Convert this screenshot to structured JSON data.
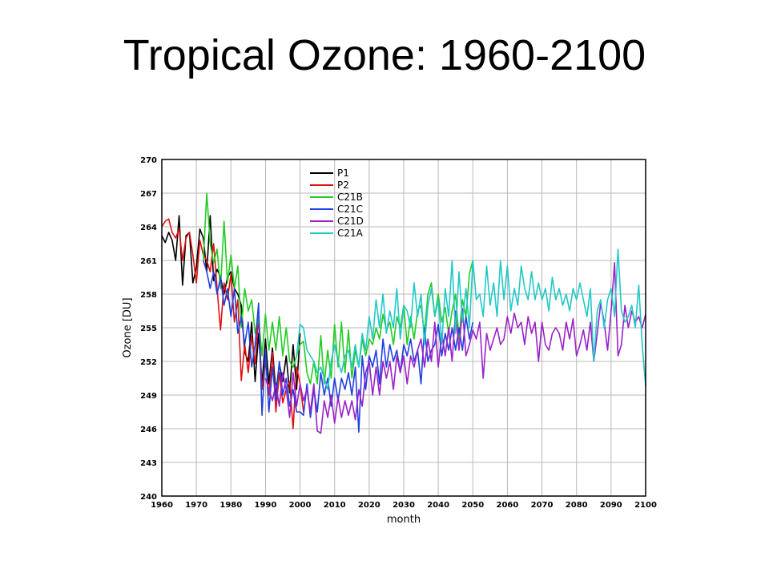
{
  "slide": {
    "title": "Tropical Ozone: 1960-2100"
  },
  "chart_data": {
    "type": "line",
    "title": "Tropical Ozone: 1960-2100",
    "xlabel": "month",
    "ylabel": "Ozone [DU]",
    "xlim": [
      1960,
      2100
    ],
    "ylim": [
      240,
      270
    ],
    "xticks": [
      1960,
      1970,
      1980,
      1990,
      2000,
      2010,
      2020,
      2030,
      2040,
      2050,
      2060,
      2070,
      2080,
      2090,
      2100
    ],
    "xtick_labels": [
      "1960",
      "1970",
      "1980",
      "1990",
      "2000",
      "2010",
      "2020",
      "2030",
      "2040",
      "2050",
      "2060",
      "2070",
      "2080",
      "2090",
      "2100"
    ],
    "yticks": [
      240,
      243,
      246,
      249,
      252,
      255,
      258,
      261,
      264,
      267,
      270
    ],
    "ytick_labels": [
      "240",
      "243",
      "246",
      "249",
      "252",
      "255",
      "258",
      "261",
      "264",
      "267",
      "270"
    ],
    "grid": true,
    "legend_position": "top-left",
    "series": [
      {
        "name": "P1",
        "color": "#000000",
        "x": [
          1960,
          1961,
          1962,
          1963,
          1964,
          1965,
          1966,
          1967,
          1968,
          1969,
          1970,
          1971,
          1972,
          1973,
          1974,
          1975,
          1976,
          1977,
          1978,
          1979,
          1980,
          1981,
          1982,
          1983,
          1984,
          1985,
          1986,
          1987,
          1988,
          1989,
          1990,
          1991,
          1992,
          1993,
          1994,
          1995,
          1996,
          1997,
          1998,
          1999,
          2000
        ],
        "y": [
          263.2,
          262.6,
          263.5,
          262.8,
          261.0,
          265.0,
          258.8,
          263.2,
          263.5,
          259.0,
          260.4,
          263.8,
          263.0,
          260.0,
          265.0,
          259.2,
          260.2,
          259.5,
          258.0,
          259.5,
          260.0,
          258.5,
          258.0,
          257.0,
          252.8,
          252.0,
          255.5,
          250.2,
          254.5,
          250.0,
          254.0,
          250.0,
          253.2,
          249.2,
          251.8,
          250.2,
          252.5,
          249.2,
          253.5,
          249.5,
          254.5
        ]
      },
      {
        "name": "P2",
        "color": "#e01010",
        "x": [
          1960,
          1961,
          1962,
          1963,
          1964,
          1965,
          1966,
          1967,
          1968,
          1969,
          1970,
          1971,
          1972,
          1973,
          1974,
          1975,
          1976,
          1977,
          1978,
          1979,
          1980,
          1981,
          1982,
          1983,
          1984,
          1985,
          1986,
          1987,
          1988,
          1989,
          1990,
          1991,
          1992,
          1993,
          1994,
          1995,
          1996,
          1997,
          1998,
          1999,
          2000,
          2001
        ],
        "y": [
          264.0,
          264.5,
          264.7,
          263.5,
          263.0,
          263.8,
          261.0,
          263.0,
          263.5,
          261.5,
          259.0,
          262.8,
          261.5,
          261.0,
          260.0,
          262.5,
          258.5,
          254.8,
          259.0,
          257.5,
          259.8,
          255.5,
          257.5,
          250.3,
          253.5,
          251.0,
          254.2,
          251.8,
          256.0,
          249.5,
          252.0,
          249.0,
          252.8,
          247.5,
          251.0,
          248.3,
          249.5,
          250.2,
          246.0,
          251.5,
          250.0,
          247.5
        ]
      },
      {
        "name": "C21B",
        "color": "#22cc22",
        "x": [
          1972,
          1973,
          1974,
          1975,
          1976,
          1977,
          1978,
          1979,
          1980,
          1981,
          1982,
          1983,
          1984,
          1985,
          1986,
          1987,
          1988,
          1989,
          1990,
          1991,
          1992,
          1993,
          1994,
          1995,
          1996,
          1997,
          1998,
          1999,
          2000,
          2001,
          2002,
          2003,
          2004,
          2005,
          2006,
          2007,
          2008,
          2009,
          2010,
          2011,
          2012,
          2013,
          2014,
          2015,
          2016,
          2017,
          2018,
          2019,
          2020,
          2021,
          2022,
          2023,
          2024,
          2025,
          2026,
          2027,
          2028,
          2029,
          2030,
          2031,
          2032,
          2033,
          2034,
          2035,
          2036,
          2037,
          2038,
          2039,
          2040,
          2041,
          2042,
          2043,
          2044,
          2045,
          2046,
          2047,
          2048,
          2049,
          2050
        ],
        "y": [
          261.0,
          267.0,
          262.5,
          260.8,
          262.0,
          258.5,
          264.5,
          259.0,
          261.5,
          258.5,
          260.5,
          255.0,
          258.5,
          256.5,
          257.5,
          254.5,
          255.8,
          252.5,
          256.2,
          253.0,
          255.5,
          253.0,
          256.0,
          252.5,
          255.0,
          252.0,
          251.5,
          252.5,
          253.5,
          253.8,
          251.0,
          250.0,
          252.0,
          250.0,
          254.3,
          250.0,
          253.0,
          250.5,
          255.3,
          251.5,
          255.5,
          251.0,
          254.8,
          250.5,
          253.0,
          251.5,
          254.0,
          252.5,
          254.0,
          253.5,
          255.0,
          254.0,
          256.2,
          254.8,
          255.5,
          253.5,
          256.0,
          255.0,
          257.0,
          253.5,
          256.0,
          254.0,
          256.5,
          257.0,
          254.5,
          258.0,
          259.0,
          256.0,
          258.0,
          255.5,
          256.8,
          254.5,
          256.5,
          258.0,
          254.0,
          257.5,
          256.0,
          259.8,
          261.0
        ]
      },
      {
        "name": "C21C",
        "color": "#2040e0",
        "x": [
          1972,
          1973,
          1974,
          1975,
          1976,
          1977,
          1978,
          1979,
          1980,
          1981,
          1982,
          1983,
          1984,
          1985,
          1986,
          1987,
          1988,
          1989,
          1990,
          1991,
          1992,
          1993,
          1994,
          1995,
          1996,
          1997,
          1998,
          1999,
          2000,
          2001,
          2002,
          2003,
          2004,
          2005,
          2006,
          2007,
          2008,
          2009,
          2010,
          2011,
          2012,
          2013,
          2014,
          2015,
          2016,
          2017,
          2018,
          2019,
          2020,
          2021,
          2022,
          2023,
          2024,
          2025,
          2026,
          2027,
          2028,
          2029,
          2030,
          2031,
          2032,
          2033,
          2034,
          2035,
          2036,
          2037,
          2038,
          2039,
          2040,
          2041,
          2042,
          2043,
          2044,
          2045,
          2046,
          2047,
          2048,
          2049,
          2050
        ],
        "y": [
          261.0,
          260.0,
          258.5,
          260.0,
          258.0,
          259.5,
          257.0,
          258.5,
          256.0,
          258.5,
          254.5,
          256.0,
          253.5,
          255.5,
          251.5,
          253.5,
          257.2,
          247.2,
          253.0,
          247.5,
          251.5,
          248.5,
          252.0,
          249.0,
          250.5,
          248.0,
          249.5,
          247.5,
          247.5,
          247.2,
          250.0,
          247.0,
          249.5,
          247.5,
          251.0,
          249.0,
          250.5,
          248.0,
          250.5,
          248.5,
          250.5,
          249.5,
          251.0,
          249.0,
          251.5,
          245.7,
          252.5,
          249.5,
          252.5,
          251.5,
          253.0,
          250.0,
          254.0,
          251.5,
          253.5,
          252.0,
          253.0,
          251.0,
          253.5,
          252.5,
          254.0,
          252.0,
          253.0,
          250.0,
          255.0,
          252.0,
          253.0,
          253.5,
          255.3,
          252.5,
          254.5,
          253.0,
          255.0,
          253.0,
          255.0,
          253.0,
          256.0,
          254.0,
          255.5
        ]
      },
      {
        "name": "C21D",
        "color": "#9a22c8",
        "x": [
          1990,
          1991,
          1992,
          1993,
          1994,
          1995,
          1996,
          1997,
          1998,
          1999,
          2000,
          2001,
          2002,
          2003,
          2004,
          2005,
          2006,
          2007,
          2008,
          2009,
          2010,
          2011,
          2012,
          2013,
          2014,
          2015,
          2016,
          2017,
          2018,
          2019,
          2020,
          2021,
          2022,
          2023,
          2024,
          2025,
          2026,
          2027,
          2028,
          2029,
          2030,
          2031,
          2032,
          2033,
          2034,
          2035,
          2036,
          2037,
          2038,
          2039,
          2040,
          2041,
          2042,
          2043,
          2044,
          2045,
          2046,
          2047,
          2048,
          2049,
          2050,
          2051,
          2052,
          2053,
          2054,
          2055,
          2056,
          2057,
          2058,
          2059,
          2060,
          2061,
          2062,
          2063,
          2064,
          2065,
          2066,
          2067,
          2068,
          2069,
          2070,
          2071,
          2072,
          2073,
          2074,
          2075,
          2076,
          2077,
          2078,
          2079,
          2080,
          2081,
          2082,
          2083,
          2084,
          2085,
          2086,
          2087,
          2088,
          2089,
          2090,
          2091,
          2092,
          2093,
          2094,
          2095,
          2096,
          2097,
          2098,
          2099,
          2100
        ],
        "y": [
          250.5,
          249.5,
          248.5,
          250.0,
          248.0,
          251.0,
          249.5,
          247.0,
          251.0,
          248.0,
          250.0,
          248.5,
          249.5,
          247.5,
          250.0,
          245.8,
          245.6,
          248.5,
          247.0,
          249.0,
          246.5,
          248.8,
          247.0,
          248.5,
          247.2,
          248.5,
          246.8,
          249.5,
          248.0,
          251.0,
          252.0,
          249.0,
          251.5,
          249.0,
          252.0,
          250.5,
          252.0,
          249.5,
          252.5,
          251.0,
          252.5,
          250.0,
          252.5,
          251.5,
          253.0,
          254.0,
          251.5,
          254.0,
          252.0,
          255.5,
          251.5,
          254.5,
          252.5,
          255.0,
          252.0,
          256.5,
          253.0,
          256.7,
          252.5,
          253.5,
          254.8,
          254.0,
          255.5,
          250.5,
          254.5,
          253.0,
          254.0,
          255.0,
          253.5,
          254.0,
          256.0,
          254.5,
          256.3,
          255.0,
          255.5,
          253.5,
          256.0,
          254.5,
          255.5,
          252.0,
          255.5,
          253.5,
          253.0,
          254.5,
          255.0,
          254.5,
          253.0,
          255.5,
          254.0,
          255.8,
          252.5,
          253.5,
          254.8,
          253.0,
          255.5,
          252.0,
          254.5,
          257.2,
          255.5,
          253.0,
          256.5,
          260.8,
          252.5,
          253.5,
          257.0,
          255.0,
          256.5,
          255.5,
          256.0,
          255.0,
          256.2
        ]
      },
      {
        "name": "C21A",
        "color": "#22c8c8",
        "x": [
          1999,
          2000,
          2001,
          2002,
          2003,
          2004,
          2005,
          2006,
          2007,
          2008,
          2009,
          2010,
          2011,
          2012,
          2013,
          2014,
          2015,
          2016,
          2017,
          2018,
          2019,
          2020,
          2021,
          2022,
          2023,
          2024,
          2025,
          2026,
          2027,
          2028,
          2029,
          2030,
          2031,
          2032,
          2033,
          2034,
          2035,
          2036,
          2037,
          2038,
          2039,
          2040,
          2041,
          2042,
          2043,
          2044,
          2045,
          2046,
          2047,
          2048,
          2049,
          2050,
          2051,
          2052,
          2053,
          2054,
          2055,
          2056,
          2057,
          2058,
          2059,
          2060,
          2061,
          2062,
          2063,
          2064,
          2065,
          2066,
          2067,
          2068,
          2069,
          2070,
          2071,
          2072,
          2073,
          2074,
          2075,
          2076,
          2077,
          2078,
          2079,
          2080,
          2081,
          2082,
          2083,
          2084,
          2085,
          2086,
          2087,
          2088,
          2089,
          2090,
          2091,
          2092,
          2093,
          2094,
          2095,
          2096,
          2097,
          2098,
          2099,
          2100
        ],
        "y": [
          252.5,
          255.3,
          255.0,
          253.0,
          252.5,
          252.0,
          251.0,
          251.5,
          250.5,
          249.5,
          252.0,
          253.5,
          252.0,
          251.0,
          252.5,
          253.0,
          251.5,
          253.5,
          251.5,
          254.5,
          253.0,
          256.0,
          254.0,
          257.5,
          255.0,
          258.0,
          254.5,
          256.5,
          255.0,
          258.5,
          254.0,
          257.0,
          256.5,
          255.0,
          259.0,
          256.0,
          258.0,
          253.5,
          257.0,
          258.5,
          256.0,
          257.5,
          253.5,
          258.5,
          256.0,
          261.0,
          254.5,
          260.0,
          255.5,
          258.5,
          255.0,
          261.0,
          257.5,
          258.0,
          256.0,
          260.5,
          257.0,
          259.0,
          256.0,
          261.0,
          257.5,
          260.5,
          256.5,
          258.5,
          257.0,
          260.5,
          258.5,
          257.5,
          260.0,
          257.5,
          259.0,
          257.5,
          258.5,
          256.5,
          259.5,
          257.5,
          258.5,
          257.0,
          258.0,
          256.5,
          258.5,
          257.5,
          259.0,
          257.5,
          256.0,
          258.5,
          252.0,
          256.5,
          257.5,
          255.0,
          257.5,
          258.5,
          256.0,
          262.0,
          256.5,
          255.5,
          256.0,
          257.0,
          255.0,
          258.8,
          253.5,
          249.8
        ]
      }
    ]
  }
}
